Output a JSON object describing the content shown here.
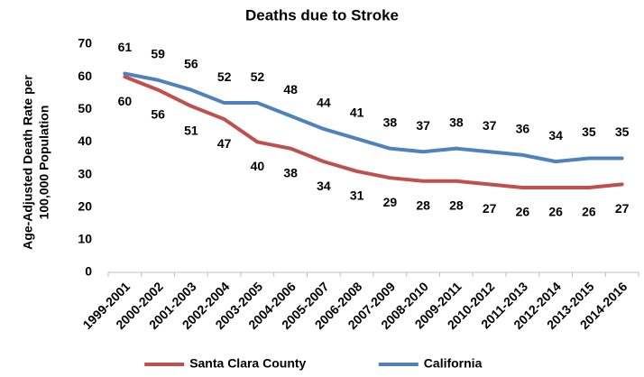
{
  "chart_data": {
    "type": "line",
    "title": "Deaths due to Stroke",
    "ylabel": [
      "Age-Adjusted Death Rate per",
      "100,000 Population"
    ],
    "categories": [
      "1999-2001",
      "2000-2002",
      "2001-2003",
      "2002-2004",
      "2003-2005",
      "2004-2006",
      "2005-2007",
      "2006-2008",
      "2007-2009",
      "2008-2010",
      "2009-2011",
      "2010-2012",
      "2011-2013",
      "2012-2014",
      "2013-2015",
      "2014-2016"
    ],
    "series": [
      {
        "name": "Santa Clara County",
        "color": "#c0504d",
        "label_position": "below",
        "values": [
          60,
          56,
          51,
          47,
          40,
          38,
          34,
          31,
          29,
          28,
          28,
          27,
          26,
          26,
          26,
          27
        ]
      },
      {
        "name": "California",
        "color": "#4f81bd",
        "label_position": "above",
        "values": [
          61,
          59,
          56,
          52,
          52,
          48,
          44,
          41,
          38,
          37,
          38,
          37,
          36,
          34,
          35,
          35
        ]
      }
    ],
    "ylim": [
      0,
      70
    ],
    "yticks": [
      0,
      10,
      20,
      30,
      40,
      50,
      60,
      70
    ],
    "grid": false,
    "legend": "bottom"
  }
}
